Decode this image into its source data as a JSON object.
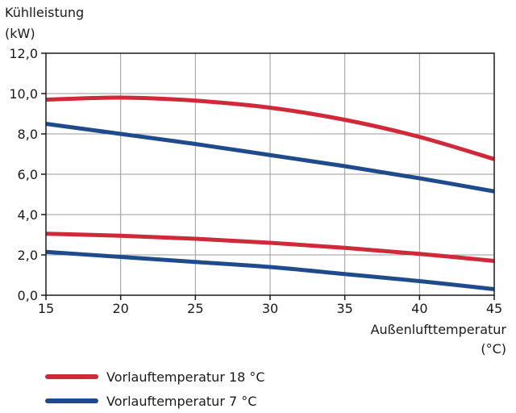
{
  "chart_data": {
    "type": "line",
    "ylabel": [
      "Kühlleistung",
      "(kW)"
    ],
    "xlabel": [
      "Außenlufttemperatur",
      "(°C)"
    ],
    "xlim": [
      15,
      45
    ],
    "ylim": [
      0,
      12
    ],
    "x_ticks": [
      15,
      20,
      25,
      30,
      35,
      40,
      45
    ],
    "y_ticks": [
      0,
      2,
      4,
      6,
      8,
      10,
      12
    ],
    "y_tick_labels": [
      "0,0",
      "2,0",
      "4,0",
      "6,0",
      "8,0",
      "10,0",
      "12,0"
    ],
    "grid": true,
    "legend_position": "bottom-left",
    "legend": [
      {
        "label": "Vorlauftemperatur 18 °C",
        "color": "#d0293a"
      },
      {
        "label": "Vorlauftemperatur 7 °C",
        "color": "#1f4a8c"
      }
    ],
    "series": [
      {
        "color": "#d0293a",
        "x": [
          15,
          20,
          25,
          30,
          35,
          40,
          45
        ],
        "y": [
          9.7,
          9.8,
          9.65,
          9.3,
          8.7,
          7.85,
          6.75
        ]
      },
      {
        "color": "#1f4a8c",
        "x": [
          15,
          20,
          25,
          30,
          35,
          40,
          45
        ],
        "y": [
          8.5,
          8.0,
          7.5,
          6.95,
          6.4,
          5.8,
          5.15
        ]
      },
      {
        "color": "#d0293a",
        "x": [
          15,
          20,
          25,
          30,
          35,
          40,
          45
        ],
        "y": [
          3.05,
          2.95,
          2.8,
          2.6,
          2.35,
          2.05,
          1.7
        ]
      },
      {
        "color": "#1f4a8c",
        "x": [
          15,
          20,
          25,
          30,
          35,
          40,
          45
        ],
        "y": [
          2.15,
          1.9,
          1.65,
          1.4,
          1.05,
          0.7,
          0.3
        ]
      }
    ]
  }
}
